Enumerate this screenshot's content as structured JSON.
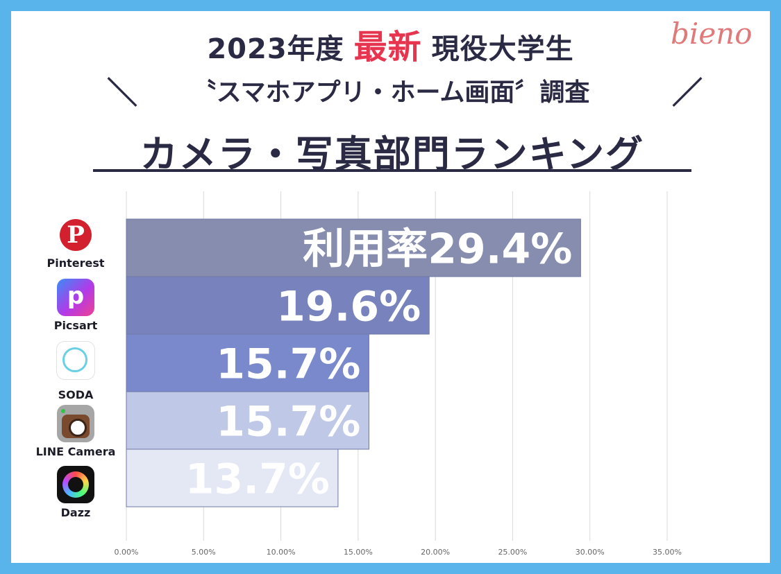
{
  "header": {
    "line1_prefix": "2023年度",
    "line1_accent": "最新",
    "line1_suffix": "現役大学生",
    "line2": "〝スマホアプリ・ホーム画面〞調査",
    "slash_left": "＼",
    "slash_right": "／",
    "line3": "カメラ・写真部門ランキング",
    "brand": "bieno"
  },
  "colors": {
    "background": "#5ab4ec",
    "title": "#2a2a44",
    "accent": "#e8354f",
    "brand": "#e07a7a"
  },
  "apps": [
    {
      "name": "Pinterest",
      "icon": "pinterest-icon"
    },
    {
      "name": "Picsart",
      "icon": "picsart-icon"
    },
    {
      "name": "SODA",
      "icon": "soda-icon"
    },
    {
      "name": "LINE Camera",
      "icon": "line-camera-icon"
    },
    {
      "name": "Dazz",
      "icon": "dazz-icon"
    }
  ],
  "chart_data": {
    "type": "bar",
    "orientation": "horizontal",
    "categories": [
      "Pinterest",
      "Picsart",
      "SODA",
      "LINE Camera",
      "Dazz"
    ],
    "values": [
      29.4,
      19.6,
      15.7,
      15.7,
      13.7
    ],
    "data_labels": [
      "利用率29.4%",
      "19.6%",
      "15.7%",
      "15.7%",
      "13.7%"
    ],
    "bar_colors": [
      "#868dae",
      "#7882bc",
      "#7a89cc",
      "#c0c8e8",
      "#e4e7f4"
    ],
    "xlim": [
      0,
      35
    ],
    "x_ticks": [
      0,
      5,
      10,
      15,
      20,
      25,
      30,
      35
    ],
    "x_tick_labels": [
      "0.00%",
      "5.00%",
      "10.00%",
      "15.00%",
      "20.00%",
      "25.00%",
      "30.00%",
      "35.00%"
    ],
    "grid": true,
    "title": "",
    "xlabel": "",
    "ylabel": ""
  }
}
